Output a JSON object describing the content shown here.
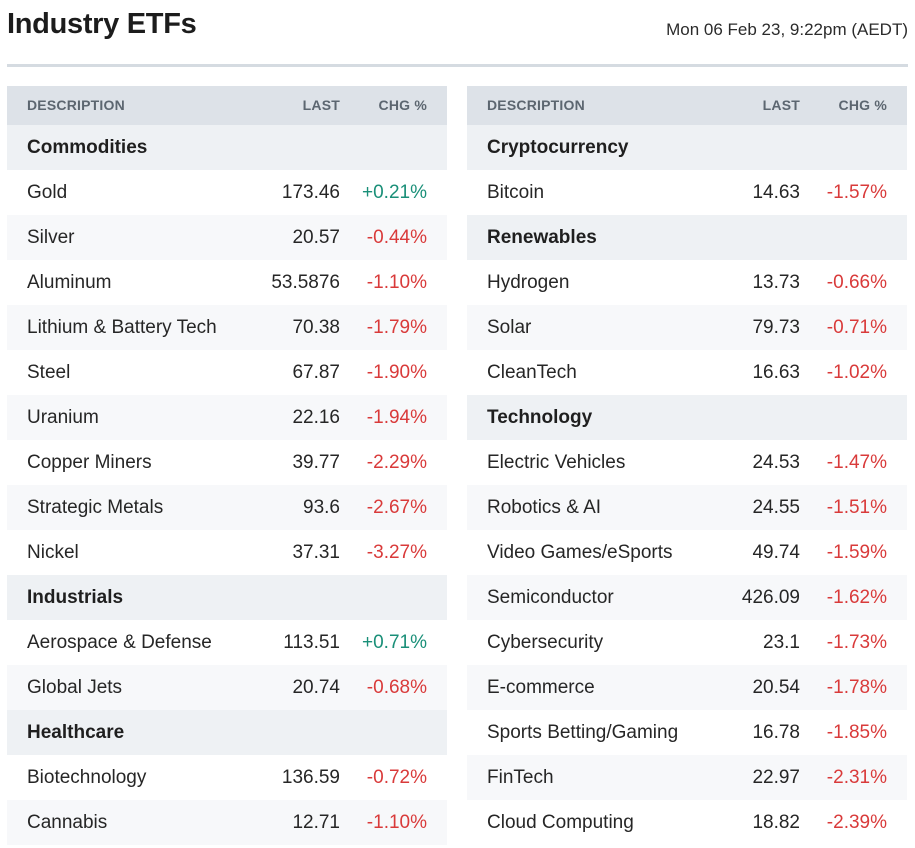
{
  "header": {
    "title": "Industry ETFs",
    "timestamp": "Mon 06 Feb 23, 9:22pm (AEDT)"
  },
  "columns": {
    "description": "DESCRIPTION",
    "last": "LAST",
    "chg": "CHG %"
  },
  "colors": {
    "positive": "#1a8f78",
    "negative": "#d93a3a",
    "header_bg": "#dde2e8",
    "group_bg": "#eef1f4"
  },
  "left_table": [
    {
      "type": "group",
      "name": "Commodities"
    },
    {
      "type": "item",
      "name": "Gold",
      "last": "173.46",
      "chg": "+0.21%"
    },
    {
      "type": "item",
      "name": "Silver",
      "last": "20.57",
      "chg": "-0.44%"
    },
    {
      "type": "item",
      "name": "Aluminum",
      "last": "53.5876",
      "chg": "-1.10%"
    },
    {
      "type": "item",
      "name": "Lithium & Battery Tech",
      "last": "70.38",
      "chg": "-1.79%"
    },
    {
      "type": "item",
      "name": "Steel",
      "last": "67.87",
      "chg": "-1.90%"
    },
    {
      "type": "item",
      "name": "Uranium",
      "last": "22.16",
      "chg": "-1.94%"
    },
    {
      "type": "item",
      "name": "Copper Miners",
      "last": "39.77",
      "chg": "-2.29%"
    },
    {
      "type": "item",
      "name": "Strategic Metals",
      "last": "93.6",
      "chg": "-2.67%"
    },
    {
      "type": "item",
      "name": "Nickel",
      "last": "37.31",
      "chg": "-3.27%"
    },
    {
      "type": "group",
      "name": "Industrials"
    },
    {
      "type": "item",
      "name": "Aerospace & Defense",
      "last": "113.51",
      "chg": "+0.71%"
    },
    {
      "type": "item",
      "name": "Global Jets",
      "last": "20.74",
      "chg": "-0.68%"
    },
    {
      "type": "group",
      "name": "Healthcare"
    },
    {
      "type": "item",
      "name": "Biotechnology",
      "last": "136.59",
      "chg": "-0.72%"
    },
    {
      "type": "item",
      "name": "Cannabis",
      "last": "12.71",
      "chg": "-1.10%"
    }
  ],
  "right_table": [
    {
      "type": "group",
      "name": "Cryptocurrency"
    },
    {
      "type": "item",
      "name": "Bitcoin",
      "last": "14.63",
      "chg": "-1.57%"
    },
    {
      "type": "group",
      "name": "Renewables"
    },
    {
      "type": "item",
      "name": "Hydrogen",
      "last": "13.73",
      "chg": "-0.66%"
    },
    {
      "type": "item",
      "name": "Solar",
      "last": "79.73",
      "chg": "-0.71%"
    },
    {
      "type": "item",
      "name": "CleanTech",
      "last": "16.63",
      "chg": "-1.02%"
    },
    {
      "type": "group",
      "name": "Technology"
    },
    {
      "type": "item",
      "name": "Electric Vehicles",
      "last": "24.53",
      "chg": "-1.47%"
    },
    {
      "type": "item",
      "name": "Robotics & AI",
      "last": "24.55",
      "chg": "-1.51%"
    },
    {
      "type": "item",
      "name": "Video Games/eSports",
      "last": "49.74",
      "chg": "-1.59%"
    },
    {
      "type": "item",
      "name": "Semiconductor",
      "last": "426.09",
      "chg": "-1.62%"
    },
    {
      "type": "item",
      "name": "Cybersecurity",
      "last": "23.1",
      "chg": "-1.73%"
    },
    {
      "type": "item",
      "name": "E-commerce",
      "last": "20.54",
      "chg": "-1.78%"
    },
    {
      "type": "item",
      "name": "Sports Betting/Gaming",
      "last": "16.78",
      "chg": "-1.85%"
    },
    {
      "type": "item",
      "name": "FinTech",
      "last": "22.97",
      "chg": "-2.31%"
    },
    {
      "type": "item",
      "name": "Cloud Computing",
      "last": "18.82",
      "chg": "-2.39%"
    }
  ]
}
